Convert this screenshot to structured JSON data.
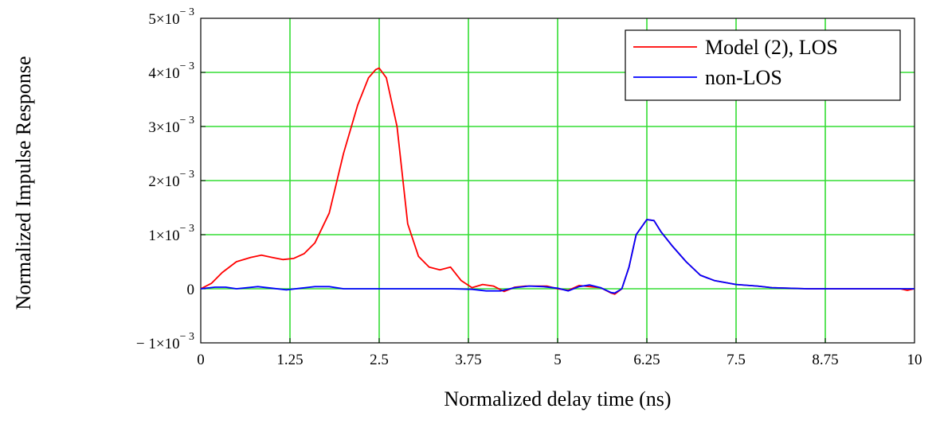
{
  "chart_data": {
    "type": "line",
    "xlabel": "Normalized delay time (ns)",
    "ylabel": "Normalized Impulse Response",
    "xlim": [
      0,
      10
    ],
    "ylim": [
      -0.001,
      0.005
    ],
    "x_ticks": [
      0,
      1.25,
      2.5,
      3.75,
      5,
      6.25,
      7.5,
      8.75,
      10
    ],
    "x_tick_labels": [
      "0",
      "1.25",
      "2.5",
      "3.75",
      "5",
      "6.25",
      "7.5",
      "8.75",
      "10"
    ],
    "y_ticks": [
      {
        "value": 0.005,
        "mantissa": "5×10",
        "exponent": "− 3"
      },
      {
        "value": 0.004,
        "mantissa": "4×10",
        "exponent": "− 3"
      },
      {
        "value": 0.003,
        "mantissa": "3×10",
        "exponent": "− 3"
      },
      {
        "value": 0.002,
        "mantissa": "2×10",
        "exponent": "− 3"
      },
      {
        "value": 0.001,
        "mantissa": "1×10",
        "exponent": "− 3"
      },
      {
        "value": 0,
        "mantissa": "0",
        "exponent": ""
      },
      {
        "value": -0.001,
        "mantissa": "− 1×10",
        "exponent": "− 3"
      }
    ],
    "grid": true,
    "grid_color": "#33dd33",
    "legend_position": "top-right",
    "series": [
      {
        "name": "Model (2), LOS",
        "color": "#ff0000",
        "x": [
          0,
          0.15,
          0.3,
          0.5,
          0.7,
          0.85,
          1.0,
          1.15,
          1.3,
          1.45,
          1.6,
          1.8,
          2.0,
          2.2,
          2.35,
          2.45,
          2.5,
          2.6,
          2.75,
          2.9,
          3.05,
          3.2,
          3.35,
          3.5,
          3.65,
          3.8,
          3.95,
          4.1,
          4.25,
          4.4,
          4.55,
          4.7,
          4.85,
          5.0,
          5.15,
          5.3,
          5.45,
          5.6,
          5.75,
          5.8,
          5.9,
          6.0,
          6.1,
          6.25,
          6.35,
          6.45,
          6.6,
          6.8,
          7.0,
          7.2,
          7.5,
          7.8,
          8.0,
          8.5,
          9.0,
          9.5,
          9.8,
          9.9,
          10.0
        ],
        "y": [
          0,
          0.0001,
          0.0003,
          0.0005,
          0.00058,
          0.00062,
          0.00058,
          0.00054,
          0.00056,
          0.00065,
          0.00085,
          0.0014,
          0.0025,
          0.0034,
          0.0039,
          0.00405,
          0.00408,
          0.0039,
          0.003,
          0.0012,
          0.0006,
          0.0004,
          0.00035,
          0.0004,
          0.00015,
          2e-05,
          8e-05,
          5e-05,
          -5e-05,
          3e-05,
          5e-05,
          5e-05,
          5e-05,
          0.0,
          -3e-05,
          6e-05,
          4e-05,
          2e-05,
          -8e-05,
          -0.0001,
          0.0,
          0.0004,
          0.001,
          0.00128,
          0.00126,
          0.00105,
          0.0008,
          0.0005,
          0.00025,
          0.00015,
          8e-05,
          5e-05,
          2e-05,
          0.0,
          0.0,
          0.0,
          0.0,
          -3e-05,
          0.0
        ]
      },
      {
        "name": "non-LOS",
        "color": "#0000ff",
        "x": [
          0,
          0.2,
          0.35,
          0.5,
          0.8,
          1.0,
          1.2,
          1.4,
          1.6,
          1.8,
          2.0,
          2.5,
          3.0,
          3.5,
          3.8,
          4.0,
          4.2,
          4.4,
          4.6,
          4.8,
          5.0,
          5.15,
          5.3,
          5.45,
          5.6,
          5.75,
          5.8,
          5.9,
          6.0,
          6.1,
          6.25,
          6.35,
          6.45,
          6.6,
          6.8,
          7.0,
          7.2,
          7.5,
          7.8,
          8.0,
          8.5,
          9.0,
          9.5,
          9.9,
          10.0
        ],
        "y": [
          0,
          3e-05,
          3e-05,
          0,
          4e-05,
          1e-05,
          -2e-05,
          1e-05,
          4e-05,
          4e-05,
          0,
          0,
          0,
          0,
          -1e-05,
          -4e-05,
          -4e-05,
          2e-05,
          5e-05,
          4e-05,
          1e-05,
          -4e-05,
          4e-05,
          7e-05,
          2e-05,
          -7e-05,
          -8e-05,
          0.0,
          0.0004,
          0.001,
          0.00128,
          0.00126,
          0.00105,
          0.0008,
          0.0005,
          0.00025,
          0.00015,
          8e-05,
          5e-05,
          2e-05,
          0.0,
          0.0,
          0.0,
          0.0,
          0.0
        ]
      }
    ]
  }
}
